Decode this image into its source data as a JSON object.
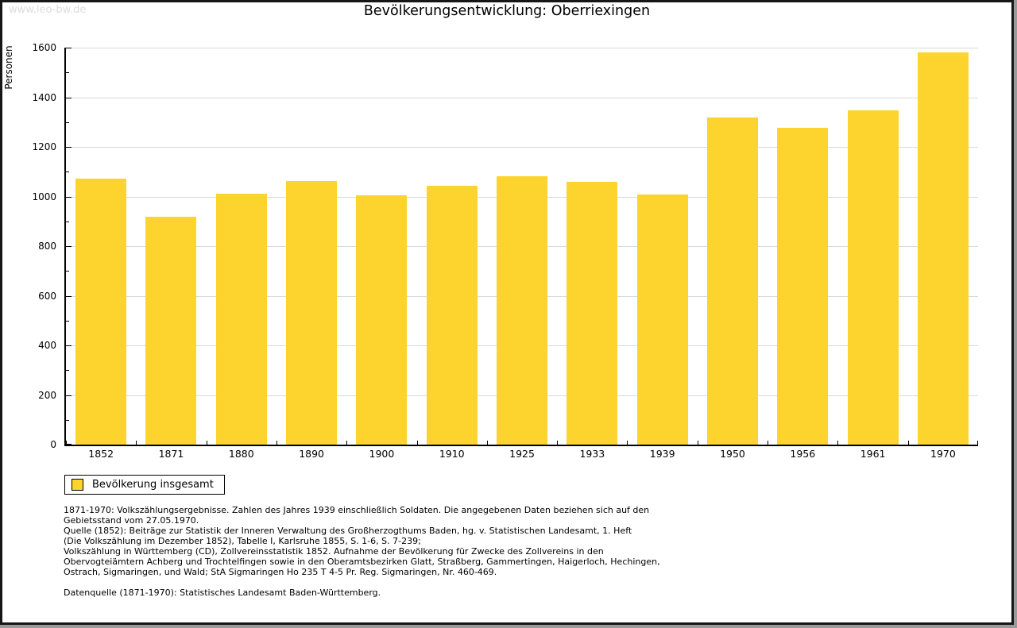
{
  "page": {
    "watermark": "www.leo-bw.de",
    "title": "Bevölkerungsentwicklung: Oberriexingen"
  },
  "chart_data": {
    "type": "bar",
    "title": "Bevölkerungsentwicklung: Oberriexingen",
    "xlabel": "",
    "ylabel": "Personen",
    "categories": [
      "1852",
      "1871",
      "1880",
      "1890",
      "1900",
      "1910",
      "1925",
      "1933",
      "1939",
      "1950",
      "1956",
      "1961",
      "1970"
    ],
    "series": [
      {
        "name": "Bevölkerung insgesamt",
        "values": [
          1071,
          917,
          1012,
          1063,
          1005,
          1044,
          1082,
          1060,
          1008,
          1317,
          1278,
          1346,
          1582
        ]
      }
    ],
    "ylim": [
      0,
      1600
    ],
    "y_major_step": 200,
    "y_minor_step": 100,
    "y_tick_labels": [
      "0",
      "200",
      "400",
      "600",
      "800",
      "1000",
      "1200",
      "1400",
      "1600"
    ],
    "grid": "horizontal gridlines at major ticks",
    "legend_position": "bottom-left",
    "bar_color": "#fcd42d"
  },
  "legend": {
    "label": "Bevölkerung insgesamt",
    "swatch_color": "#fcd42d"
  },
  "colors": {
    "bar": "#fcd42d",
    "gridline": "#d9d9d9",
    "axis": "#000000",
    "watermark_text": "#dcdcdc",
    "frame": "#161616",
    "frame_shadow": "#9a9a9a"
  },
  "footer": {
    "lines": [
      "1871-1970: Volkszählungsergebnisse. Zahlen des Jahres 1939 einschließlich Soldaten. Die angegebenen Daten beziehen sich auf den",
      "Gebietsstand vom 27.05.1970.",
      "Quelle (1852): Beiträge zur Statistik der Inneren Verwaltung des Großherzogthums Baden, hg. v. Statistischen Landesamt, 1. Heft",
      "(Die Volkszählung im Dezember 1852), Tabelle I, Karlsruhe 1855, S. 1-6, S. 7-239;",
      "Volkszählung in Württemberg (CD), Zollvereinsstatistik 1852. Aufnahme der Bevölkerung für Zwecke des Zollvereins in den",
      "Obervogteiämtern Achberg und Trochtelfingen sowie in den Oberamtsbezirken Glatt, Straßberg, Gammertingen, Haigerloch, Hechingen,",
      "Ostrach, Sigmaringen, und Wald; StA Sigmaringen Ho 235 T 4-5 Pr. Reg. Sigmaringen, Nr. 460-469.",
      "",
      "Datenquelle (1871-1970): Statistisches Landesamt Baden-Württemberg."
    ]
  }
}
